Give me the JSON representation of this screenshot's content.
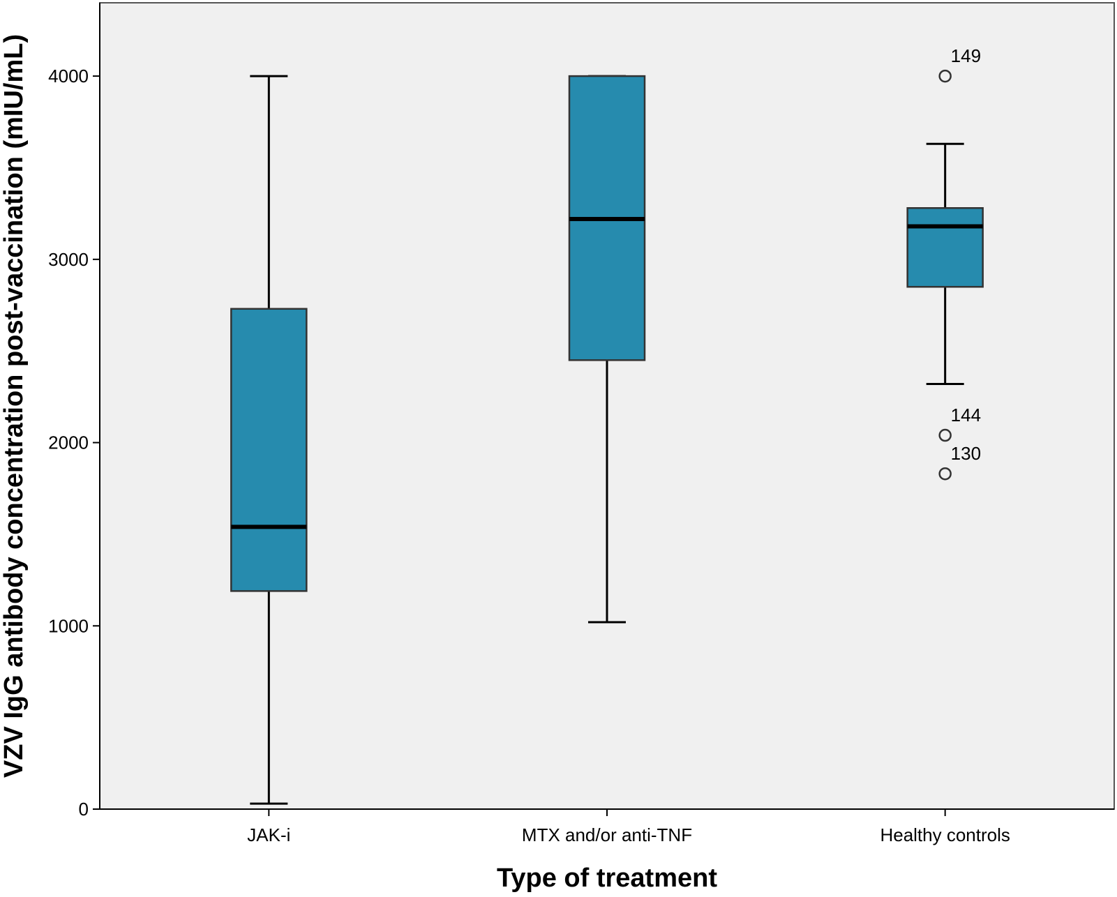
{
  "chart_data": {
    "type": "boxplot",
    "xlabel": "Type of treatment",
    "ylabel": "VZV IgG antibody concentration post-vaccination (mIU/mL)",
    "ylim": [
      0,
      4400
    ],
    "yticks": [
      0,
      1000,
      2000,
      3000,
      4000
    ],
    "categories": [
      "JAK-i",
      "MTX and/or anti-TNF",
      "Healthy controls"
    ],
    "boxes": [
      {
        "category": "JAK-i",
        "whisker_low": 30,
        "q1": 1190,
        "median": 1540,
        "q3": 2730,
        "whisker_high": 4000,
        "outliers": []
      },
      {
        "category": "MTX and/or anti-TNF",
        "whisker_low": 1020,
        "q1": 2450,
        "median": 3220,
        "q3": 4000,
        "whisker_high": 4000,
        "outliers": []
      },
      {
        "category": "Healthy controls",
        "whisker_low": 2320,
        "q1": 2850,
        "median": 3180,
        "q3": 3280,
        "whisker_high": 3630,
        "outliers": [
          {
            "value": 4000,
            "label": "149"
          },
          {
            "value": 2040,
            "label": "144"
          },
          {
            "value": 1830,
            "label": "130"
          }
        ]
      }
    ],
    "colors": {
      "box_fill": "#268bae",
      "plot_bg": "#f0f0f0",
      "line": "#000000"
    },
    "grid": false
  }
}
